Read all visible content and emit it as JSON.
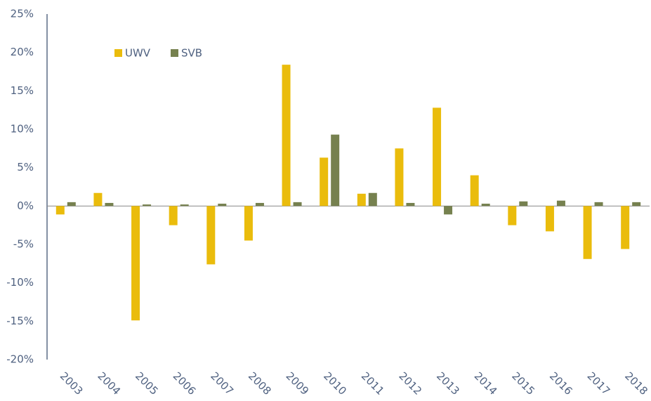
{
  "chart_data": {
    "type": "bar",
    "categories": [
      "2003",
      "2004",
      "2005",
      "2006",
      "2007",
      "2008",
      "2009",
      "2010",
      "2011",
      "2012",
      "2013",
      "2014",
      "2015",
      "2016",
      "2017",
      "2018"
    ],
    "series": [
      {
        "name": "UWV",
        "color": "#eabc0c",
        "values": [
          -1.1,
          1.7,
          -14.9,
          -2.5,
          -7.6,
          -4.5,
          18.4,
          6.3,
          1.6,
          7.5,
          12.8,
          4.0,
          -2.5,
          -3.3,
          -6.9,
          -5.6
        ]
      },
      {
        "name": "SVB",
        "color": "#76814f",
        "values": [
          0.5,
          0.4,
          0.2,
          0.2,
          0.3,
          0.4,
          0.5,
          9.3,
          1.7,
          0.4,
          -1.1,
          0.3,
          0.6,
          0.7,
          0.5,
          0.5
        ]
      }
    ],
    "ylim": [
      -20,
      25
    ],
    "yticks": [
      {
        "value": -20,
        "label": "-20%"
      },
      {
        "value": -15,
        "label": "-15%"
      },
      {
        "value": -10,
        "label": "-10%"
      },
      {
        "value": -5,
        "label": "-5%"
      },
      {
        "value": 0,
        "label": "0%"
      },
      {
        "value": 5,
        "label": "5%"
      },
      {
        "value": 10,
        "label": "10%"
      },
      {
        "value": 15,
        "label": "15%"
      },
      {
        "value": 20,
        "label": "20%"
      },
      {
        "value": 25,
        "label": "25%"
      }
    ],
    "grid": false,
    "legend": "upper-left"
  }
}
